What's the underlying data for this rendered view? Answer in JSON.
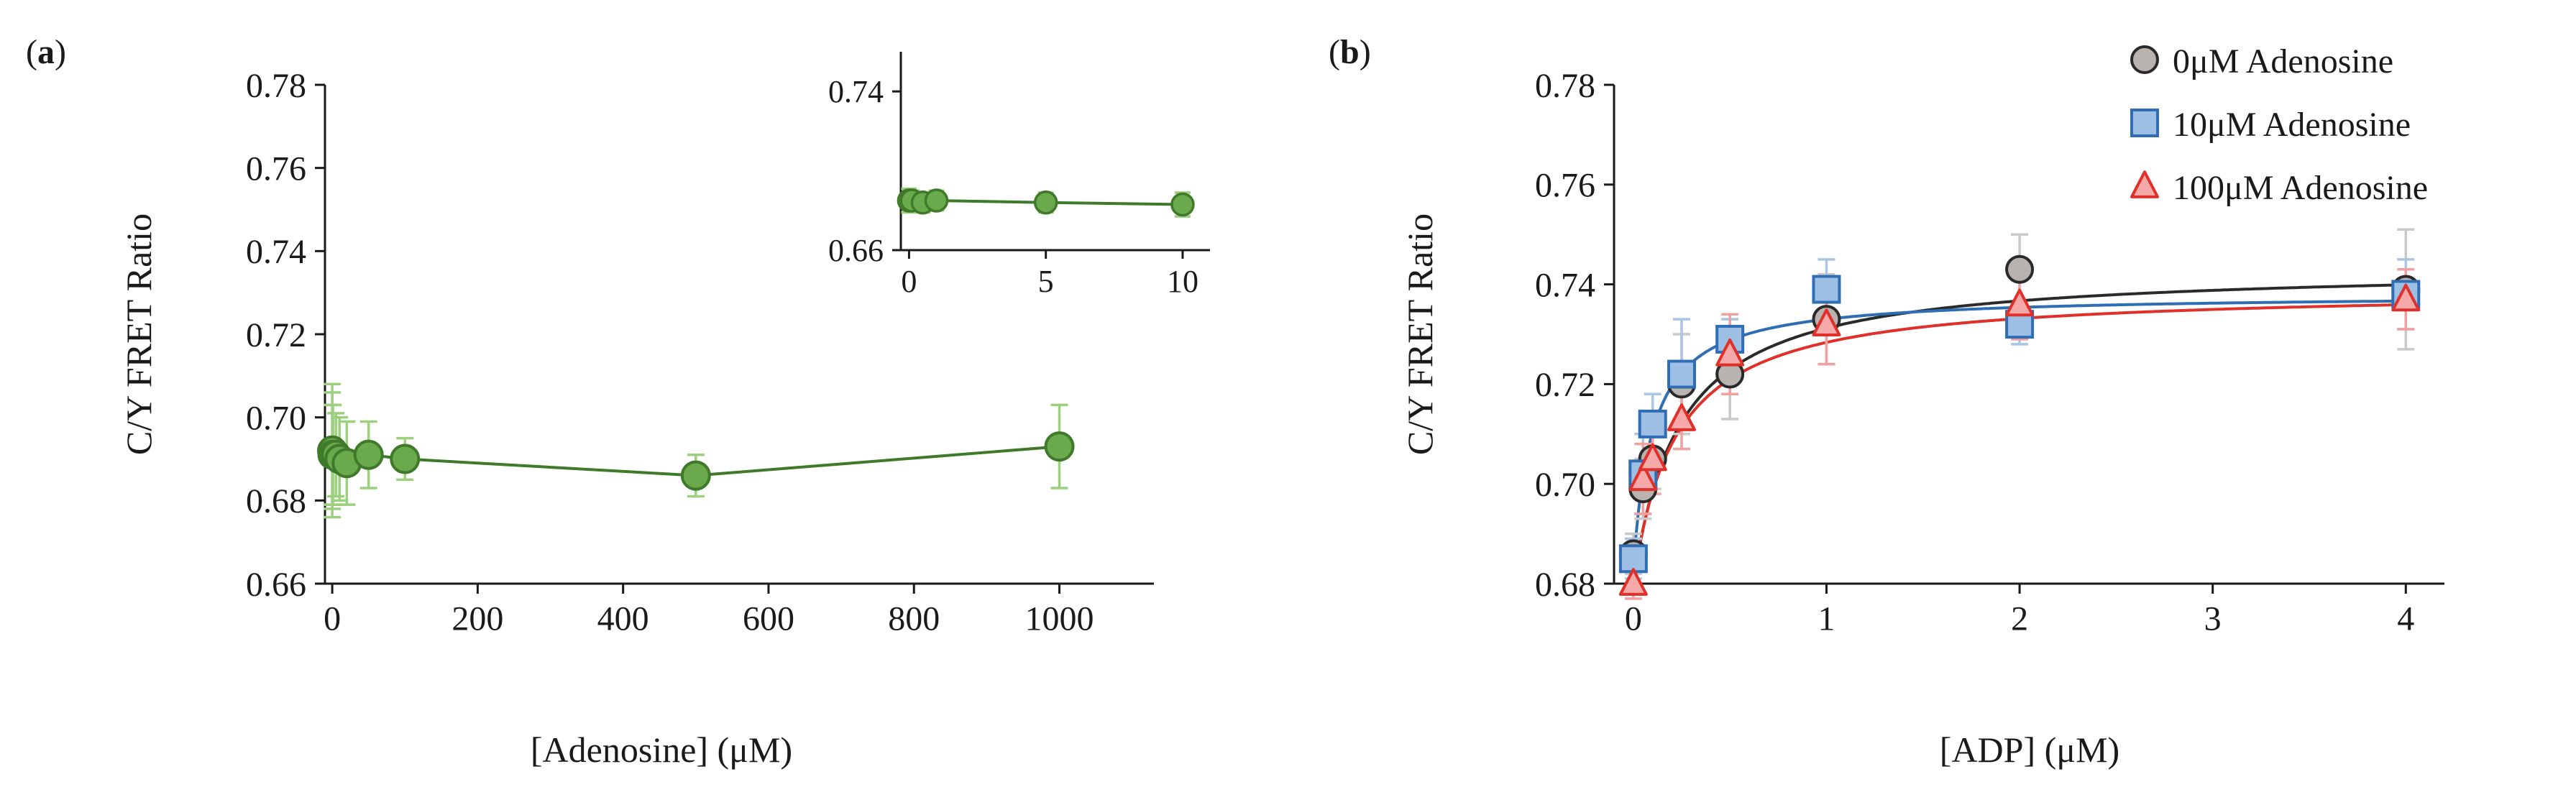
{
  "chart_data": [
    {
      "panel_label": "a",
      "type": "scatter",
      "xlabel": "[Adenosine] (μM)",
      "ylabel": "C/Y FRET Ratio",
      "xlim": [
        -10,
        1130
      ],
      "ylim": [
        0.66,
        0.78
      ],
      "xticks": [
        0,
        200,
        400,
        600,
        800,
        1000
      ],
      "yticks": [
        0.66,
        0.68,
        0.7,
        0.72,
        0.74,
        0.76,
        0.78
      ],
      "series": [
        {
          "name": "Adenosine",
          "color": "#6aaa4c",
          "line_color": "#3f7a2a",
          "marker": "circle",
          "points": [
            {
              "x": 0,
              "y": 0.692,
              "err": 0.016
            },
            {
              "x": 0.1,
              "y": 0.692,
              "err": 0.014
            },
            {
              "x": 0.5,
              "y": 0.691,
              "err": 0.012
            },
            {
              "x": 1,
              "y": 0.691,
              "err": 0.012
            },
            {
              "x": 5,
              "y": 0.691,
              "err": 0.01
            },
            {
              "x": 10,
              "y": 0.69,
              "err": 0.01
            },
            {
              "x": 20,
              "y": 0.689,
              "err": 0.01
            },
            {
              "x": 50,
              "y": 0.691,
              "err": 0.008
            },
            {
              "x": 100,
              "y": 0.69,
              "err": 0.005
            },
            {
              "x": 500,
              "y": 0.686,
              "err": 0.005
            },
            {
              "x": 1000,
              "y": 0.693,
              "err": 0.01
            }
          ]
        }
      ],
      "inset": {
        "xlim": [
          -0.3,
          11
        ],
        "ylim": [
          0.66,
          0.76
        ],
        "xticks": [
          0,
          5,
          10
        ],
        "yticks": [
          0.66,
          0.74
        ],
        "points": [
          {
            "x": 0,
            "y": 0.685,
            "err": 0.006
          },
          {
            "x": 0.1,
            "y": 0.685,
            "err": 0.005
          },
          {
            "x": 0.5,
            "y": 0.684,
            "err": 0.005
          },
          {
            "x": 1,
            "y": 0.685,
            "err": 0.005
          },
          {
            "x": 5,
            "y": 0.684,
            "err": 0.005
          },
          {
            "x": 10,
            "y": 0.683,
            "err": 0.006
          }
        ]
      }
    },
    {
      "panel_label": "b",
      "type": "scatter",
      "xlabel": "[ADP] (μM)",
      "ylabel": "C/Y FRET Ratio",
      "xlim": [
        -0.1,
        4.2
      ],
      "ylim": [
        0.68,
        0.78
      ],
      "xticks": [
        0,
        1,
        2,
        3,
        4
      ],
      "yticks": [
        0.68,
        0.7,
        0.72,
        0.74,
        0.76,
        0.78
      ],
      "legend_position": "top-right",
      "series": [
        {
          "name": "0μM Adenosine",
          "marker": "circle",
          "color": "#b9b3b0",
          "line_color": "#2a2a2a",
          "err_color": "#c9c9c9",
          "fit": {
            "bottom": 0.68,
            "top": 0.7435,
            "kd": 0.24
          },
          "points": [
            {
              "x": 0,
              "y": 0.686,
              "err": 0.004
            },
            {
              "x": 0.05,
              "y": 0.699,
              "err": 0.006
            },
            {
              "x": 0.1,
              "y": 0.705,
              "err": 0.006
            },
            {
              "x": 0.25,
              "y": 0.72,
              "err": 0.01
            },
            {
              "x": 0.5,
              "y": 0.722,
              "err": 0.009
            },
            {
              "x": 1,
              "y": 0.733,
              "err": 0.009
            },
            {
              "x": 2,
              "y": 0.743,
              "err": 0.007
            },
            {
              "x": 4,
              "y": 0.739,
              "err": 0.012
            }
          ]
        },
        {
          "name": "10μM Adenosine",
          "marker": "square",
          "color": "#9dbfe4",
          "line_color": "#2f6db5",
          "err_color": "#a9c4e4",
          "fit": {
            "bottom": 0.683,
            "top": 0.738,
            "kd": 0.1
          },
          "points": [
            {
              "x": 0,
              "y": 0.685,
              "err": 0.004
            },
            {
              "x": 0.05,
              "y": 0.702,
              "err": 0.008
            },
            {
              "x": 0.1,
              "y": 0.712,
              "err": 0.006
            },
            {
              "x": 0.25,
              "y": 0.722,
              "err": 0.011
            },
            {
              "x": 0.5,
              "y": 0.729,
              "err": 0.004
            },
            {
              "x": 1,
              "y": 0.739,
              "err": 0.006
            },
            {
              "x": 2,
              "y": 0.732,
              "err": 0.004
            },
            {
              "x": 4,
              "y": 0.738,
              "err": 0.007
            }
          ]
        },
        {
          "name": "100μM Adenosine",
          "marker": "triangle",
          "color": "#f5a9a9",
          "line_color": "#e0302a",
          "err_color": "#f0a0a0",
          "fit": {
            "bottom": 0.68,
            "top": 0.739,
            "kd": 0.22
          },
          "points": [
            {
              "x": 0,
              "y": 0.68,
              "err": 0.003
            },
            {
              "x": 0.05,
              "y": 0.701,
              "err": 0.007
            },
            {
              "x": 0.1,
              "y": 0.705,
              "err": 0.007
            },
            {
              "x": 0.25,
              "y": 0.713,
              "err": 0.006
            },
            {
              "x": 0.5,
              "y": 0.726,
              "err": 0.008
            },
            {
              "x": 1,
              "y": 0.732,
              "err": 0.008
            },
            {
              "x": 2,
              "y": 0.736,
              "err": 0.007
            },
            {
              "x": 4,
              "y": 0.737,
              "err": 0.006
            }
          ]
        }
      ]
    }
  ]
}
